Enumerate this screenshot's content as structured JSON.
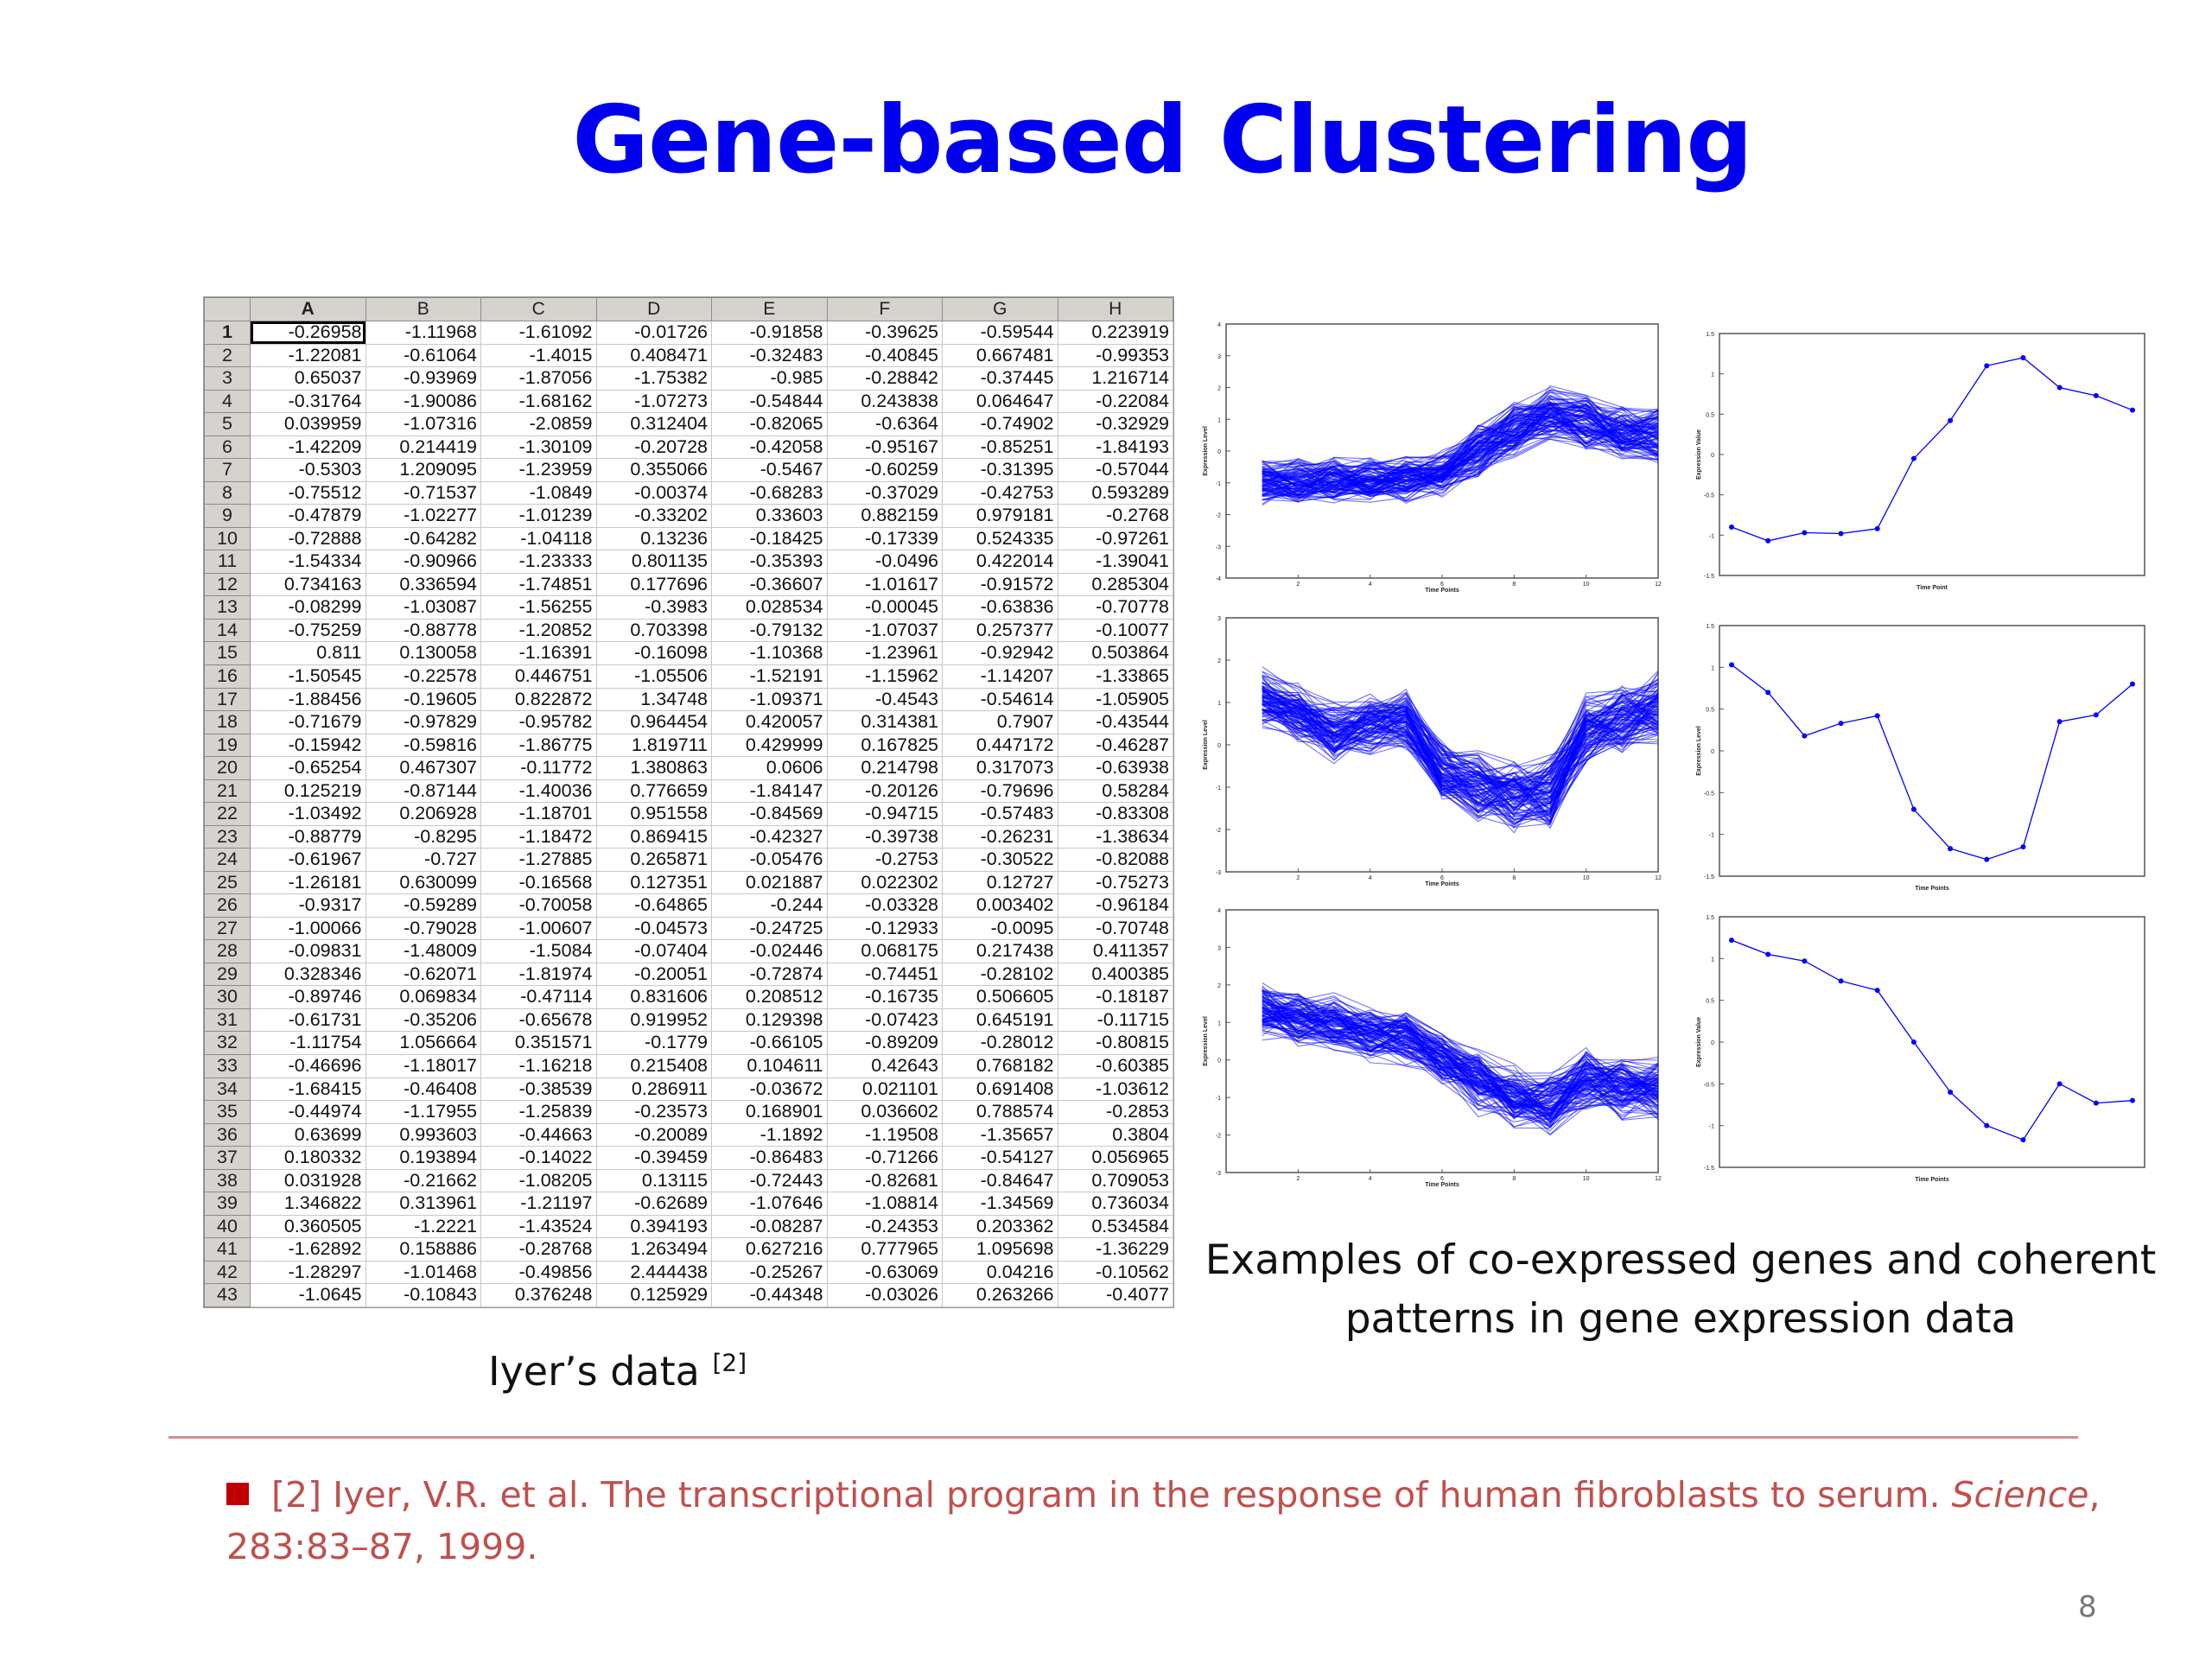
{
  "title": "Gene-based Clustering",
  "spreadsheet": {
    "columns": [
      "A",
      "B",
      "C",
      "D",
      "E",
      "F",
      "G",
      "H"
    ],
    "rows": [
      [
        "1",
        "-0.26958",
        "-1.11968",
        "-1.61092",
        "-0.01726",
        "-0.91858",
        "-0.39625",
        "-0.59544",
        "0.223919"
      ],
      [
        "2",
        "-1.22081",
        "-0.61064",
        "-1.4015",
        "0.408471",
        "-0.32483",
        "-0.40845",
        "0.667481",
        "-0.99353"
      ],
      [
        "3",
        "0.65037",
        "-0.93969",
        "-1.87056",
        "-1.75382",
        "-0.985",
        "-0.28842",
        "-0.37445",
        "1.216714"
      ],
      [
        "4",
        "-0.31764",
        "-1.90086",
        "-1.68162",
        "-1.07273",
        "-0.54844",
        "0.243838",
        "0.064647",
        "-0.22084"
      ],
      [
        "5",
        "0.039959",
        "-1.07316",
        "-2.0859",
        "0.312404",
        "-0.82065",
        "-0.6364",
        "-0.74902",
        "-0.32929"
      ],
      [
        "6",
        "-1.42209",
        "0.214419",
        "-1.30109",
        "-0.20728",
        "-0.42058",
        "-0.95167",
        "-0.85251",
        "-1.84193"
      ],
      [
        "7",
        "-0.5303",
        "1.209095",
        "-1.23959",
        "0.355066",
        "-0.5467",
        "-0.60259",
        "-0.31395",
        "-0.57044"
      ],
      [
        "8",
        "-0.75512",
        "-0.71537",
        "-1.0849",
        "-0.00374",
        "-0.68283",
        "-0.37029",
        "-0.42753",
        "0.593289"
      ],
      [
        "9",
        "-0.47879",
        "-1.02277",
        "-1.01239",
        "-0.33202",
        "0.33603",
        "0.882159",
        "0.979181",
        "-0.2768"
      ],
      [
        "10",
        "-0.72888",
        "-0.64282",
        "-1.04118",
        "0.13236",
        "-0.18425",
        "-0.17339",
        "0.524335",
        "-0.97261"
      ],
      [
        "11",
        "-1.54334",
        "-0.90966",
        "-1.23333",
        "0.801135",
        "-0.35393",
        "-0.0496",
        "0.422014",
        "-1.39041"
      ],
      [
        "12",
        "0.734163",
        "0.336594",
        "-1.74851",
        "0.177696",
        "-0.36607",
        "-1.01617",
        "-0.91572",
        "0.285304"
      ],
      [
        "13",
        "-0.08299",
        "-1.03087",
        "-1.56255",
        "-0.3983",
        "0.028534",
        "-0.00045",
        "-0.63836",
        "-0.70778"
      ],
      [
        "14",
        "-0.75259",
        "-0.88778",
        "-1.20852",
        "0.703398",
        "-0.79132",
        "-1.07037",
        "0.257377",
        "-0.10077"
      ],
      [
        "15",
        "0.811",
        "0.130058",
        "-1.16391",
        "-0.16098",
        "-1.10368",
        "-1.23961",
        "-0.92942",
        "0.503864"
      ],
      [
        "16",
        "-1.50545",
        "-0.22578",
        "0.446751",
        "-1.05506",
        "-1.52191",
        "-1.15962",
        "-1.14207",
        "-1.33865"
      ],
      [
        "17",
        "-1.88456",
        "-0.19605",
        "0.822872",
        "1.34748",
        "-1.09371",
        "-0.4543",
        "-0.54614",
        "-1.05905"
      ],
      [
        "18",
        "-0.71679",
        "-0.97829",
        "-0.95782",
        "0.964454",
        "0.420057",
        "0.314381",
        "0.7907",
        "-0.43544"
      ],
      [
        "19",
        "-0.15942",
        "-0.59816",
        "-1.86775",
        "1.819711",
        "0.429999",
        "0.167825",
        "0.447172",
        "-0.46287"
      ],
      [
        "20",
        "-0.65254",
        "0.467307",
        "-0.11772",
        "1.380863",
        "0.0606",
        "0.214798",
        "0.317073",
        "-0.63938"
      ],
      [
        "21",
        "0.125219",
        "-0.87144",
        "-1.40036",
        "0.776659",
        "-1.84147",
        "-0.20126",
        "-0.79696",
        "0.58284"
      ],
      [
        "22",
        "-1.03492",
        "0.206928",
        "-1.18701",
        "0.951558",
        "-0.84569",
        "-0.94715",
        "-0.57483",
        "-0.83308"
      ],
      [
        "23",
        "-0.88779",
        "-0.8295",
        "-1.18472",
        "0.869415",
        "-0.42327",
        "-0.39738",
        "-0.26231",
        "-1.38634"
      ],
      [
        "24",
        "-0.61967",
        "-0.727",
        "-1.27885",
        "0.265871",
        "-0.05476",
        "-0.2753",
        "-0.30522",
        "-0.82088"
      ],
      [
        "25",
        "-1.26181",
        "0.630099",
        "-0.16568",
        "0.127351",
        "0.021887",
        "0.022302",
        "0.12727",
        "-0.75273"
      ],
      [
        "26",
        "-0.9317",
        "-0.59289",
        "-0.70058",
        "-0.64865",
        "-0.244",
        "-0.03328",
        "0.003402",
        "-0.96184"
      ],
      [
        "27",
        "-1.00066",
        "-0.79028",
        "-1.00607",
        "-0.04573",
        "-0.24725",
        "-0.12933",
        "-0.0095",
        "-0.70748"
      ],
      [
        "28",
        "-0.09831",
        "-1.48009",
        "-1.5084",
        "-0.07404",
        "-0.02446",
        "0.068175",
        "0.217438",
        "0.411357"
      ],
      [
        "29",
        "0.328346",
        "-0.62071",
        "-1.81974",
        "-0.20051",
        "-0.72874",
        "-0.74451",
        "-0.28102",
        "0.400385"
      ],
      [
        "30",
        "-0.89746",
        "0.069834",
        "-0.47114",
        "0.831606",
        "0.208512",
        "-0.16735",
        "0.506605",
        "-0.18187"
      ],
      [
        "31",
        "-0.61731",
        "-0.35206",
        "-0.65678",
        "0.919952",
        "0.129398",
        "-0.07423",
        "0.645191",
        "-0.11715"
      ],
      [
        "32",
        "-1.11754",
        "1.056664",
        "0.351571",
        "-0.1779",
        "-0.66105",
        "-0.89209",
        "-0.28012",
        "-0.80815"
      ],
      [
        "33",
        "-0.46696",
        "-1.18017",
        "-1.16218",
        "0.215408",
        "0.104611",
        "0.42643",
        "0.768182",
        "-0.60385"
      ],
      [
        "34",
        "-1.68415",
        "-0.46408",
        "-0.38539",
        "0.286911",
        "-0.03672",
        "0.021101",
        "0.691408",
        "-1.03612"
      ],
      [
        "35",
        "-0.44974",
        "-1.17955",
        "-1.25839",
        "-0.23573",
        "0.168901",
        "0.036602",
        "0.788574",
        "-0.2853"
      ],
      [
        "36",
        "0.63699",
        "0.993603",
        "-0.44663",
        "-0.20089",
        "-1.1892",
        "-1.19508",
        "-1.35657",
        "0.3804"
      ],
      [
        "37",
        "0.180332",
        "0.193894",
        "-0.14022",
        "-0.39459",
        "-0.86483",
        "-0.71266",
        "-0.54127",
        "0.056965"
      ],
      [
        "38",
        "0.031928",
        "-0.21662",
        "-1.08205",
        "0.13115",
        "-0.72443",
        "-0.82681",
        "-0.84647",
        "0.709053"
      ],
      [
        "39",
        "1.346822",
        "0.313961",
        "-1.21197",
        "-0.62689",
        "-1.07646",
        "-1.08814",
        "-1.34569",
        "0.736034"
      ],
      [
        "40",
        "0.360505",
        "-1.2221",
        "-1.43524",
        "0.394193",
        "-0.08287",
        "-0.24353",
        "0.203362",
        "0.534584"
      ],
      [
        "41",
        "-1.62892",
        "0.158886",
        "-0.28768",
        "1.263494",
        "0.627216",
        "0.777965",
        "1.095698",
        "-1.36229"
      ],
      [
        "42",
        "-1.28297",
        "-1.01468",
        "-0.49856",
        "2.444438",
        "-0.25267",
        "-0.63069",
        "0.04216",
        "-0.10562"
      ],
      [
        "43",
        "-1.0645",
        "-0.10843",
        "0.376248",
        "0.125929",
        "-0.44348",
        "-0.03026",
        "0.263266",
        "-0.4077"
      ]
    ]
  },
  "iyer_caption": "Iyer’s data",
  "iyer_ref": "[2]",
  "examples_caption_line1": "Examples of co-expressed genes and coherent",
  "examples_caption_line2": "patterns in gene expression data",
  "reference": {
    "prefix": "[2]  Iyer, V.R. et al. The transcriptional program in the response of human fibroblasts to serum. ",
    "journal": "Science",
    "suffix": ", 283:83–87, 1999."
  },
  "page_number": "8",
  "colors": {
    "title": "#0000ee",
    "reference": "#c0504d",
    "bullet": "#c00000",
    "line": "#0000ff"
  },
  "chart_data": [
    {
      "type": "line",
      "name": "cluster1",
      "xlabel": "Time Points",
      "ylabel": "Expression Level",
      "xlim": [
        0,
        12
      ],
      "ylim": [
        -4,
        4
      ],
      "xticks": [
        2,
        4,
        6,
        8,
        10,
        12
      ],
      "yticks": [
        -4,
        -3,
        -2,
        -1,
        0,
        1,
        2,
        3,
        4
      ],
      "pattern": [
        -0.95,
        -1.0,
        -0.9,
        -0.95,
        -0.9,
        -0.7,
        0.0,
        0.7,
        1.2,
        0.9,
        0.6,
        0.5
      ]
    },
    {
      "type": "line",
      "name": "pattern1",
      "xlabel": "Time Point",
      "ylabel": "Expression Value",
      "ylim": [
        -1.5,
        1.5
      ],
      "yticks": [
        -1.5,
        -1,
        -0.5,
        0,
        0.5,
        1,
        1.5
      ],
      "x": [
        1,
        2,
        3,
        4,
        5,
        6,
        7,
        8,
        9,
        10,
        11,
        12
      ],
      "values": [
        -0.9,
        -1.07,
        -0.97,
        -0.98,
        -0.92,
        -0.05,
        0.42,
        1.1,
        1.2,
        0.83,
        0.73,
        0.55
      ]
    },
    {
      "type": "line",
      "name": "cluster2",
      "xlabel": "Time Points",
      "ylabel": "Expression Level",
      "xlim": [
        0,
        12
      ],
      "ylim": [
        -3,
        3
      ],
      "xticks": [
        2,
        4,
        6,
        8,
        10,
        12
      ],
      "yticks": [
        -3,
        -2,
        -1,
        0,
        1,
        2,
        3
      ],
      "pattern": [
        1.1,
        0.8,
        0.3,
        0.5,
        0.6,
        -0.6,
        -1.0,
        -1.2,
        -1.1,
        0.4,
        0.6,
        0.9
      ]
    },
    {
      "type": "line",
      "name": "pattern2",
      "xlabel": "Time Points",
      "ylabel": "Expression Level",
      "ylim": [
        -1.5,
        1.5
      ],
      "yticks": [
        -1.5,
        -1,
        -0.5,
        0,
        0.5,
        1,
        1.5
      ],
      "x": [
        1,
        2,
        3,
        4,
        5,
        6,
        7,
        8,
        9,
        10,
        11,
        12
      ],
      "values": [
        1.03,
        0.7,
        0.18,
        0.33,
        0.42,
        -0.7,
        -1.17,
        -1.3,
        -1.15,
        0.35,
        0.43,
        0.8
      ]
    },
    {
      "type": "line",
      "name": "cluster3",
      "xlabel": "Time Points",
      "ylabel": "Expression Level",
      "xlim": [
        0,
        12
      ],
      "ylim": [
        -3,
        4
      ],
      "xticks": [
        2,
        4,
        6,
        8,
        10,
        12
      ],
      "yticks": [
        -3,
        -2,
        -1,
        0,
        1,
        2,
        3,
        4
      ],
      "pattern": [
        1.3,
        1.1,
        1.0,
        0.7,
        0.6,
        0.0,
        -0.6,
        -1.0,
        -1.2,
        -0.5,
        -0.8,
        -0.8
      ]
    },
    {
      "type": "line",
      "name": "pattern3",
      "xlabel": "Time Points",
      "ylabel": "Expression Value",
      "ylim": [
        -1.5,
        1.5
      ],
      "yticks": [
        -1.5,
        -1,
        -0.5,
        0,
        0.5,
        1,
        1.5
      ],
      "x": [
        1,
        2,
        3,
        4,
        5,
        6,
        7,
        8,
        9,
        10,
        11,
        12
      ],
      "values": [
        1.22,
        1.05,
        0.97,
        0.73,
        0.62,
        0.0,
        -0.6,
        -1.0,
        -1.17,
        -0.5,
        -0.73,
        -0.7
      ]
    }
  ]
}
